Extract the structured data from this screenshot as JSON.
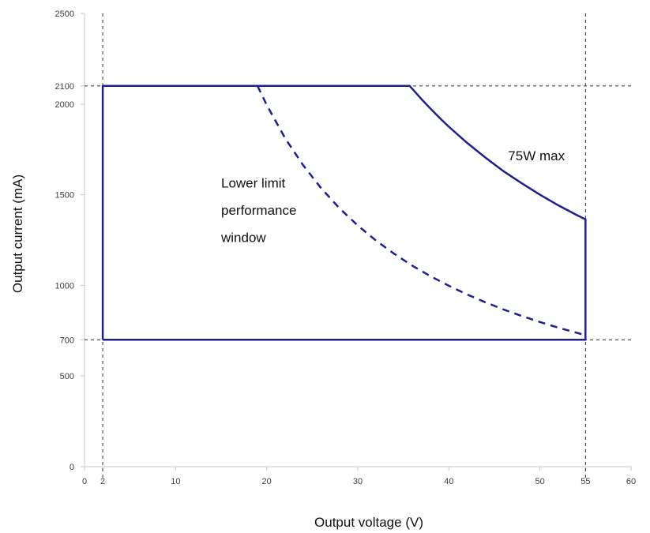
{
  "chart_data": {
    "type": "line",
    "xlabel": "Output voltage (V)",
    "ylabel": "Output current (mA)",
    "xlim": [
      0,
      60
    ],
    "ylim": [
      0,
      2500
    ],
    "x_ticks": [
      0,
      2,
      10,
      20,
      30,
      40,
      50,
      55,
      60
    ],
    "y_ticks": [
      0,
      500,
      700,
      1000,
      1500,
      2000,
      2100,
      2500
    ],
    "grid": false,
    "reference_lines": {
      "vertical_x": [
        2,
        55
      ],
      "horizontal_y": [
        700,
        2100
      ],
      "style": "dashed"
    },
    "series": [
      {
        "style": "solid",
        "x": [
          2,
          2,
          35.7,
          36,
          36.5,
          37,
          38,
          39,
          40,
          42,
          44,
          46,
          48,
          50,
          52,
          54,
          55,
          55,
          2
        ],
        "y": [
          700,
          2100,
          2100,
          2083,
          2055,
          2027,
          1974,
          1923,
          1875,
          1786,
          1705,
          1630,
          1563,
          1500,
          1442,
          1389,
          1364,
          700,
          700
        ]
      },
      {
        "style": "dashed",
        "x": [
          19,
          20,
          22,
          24,
          26,
          28,
          30,
          32,
          34,
          36,
          38,
          40,
          42,
          44,
          46,
          48,
          50,
          52,
          54,
          55
        ],
        "y": [
          2100,
          1995,
          1814,
          1663,
          1535,
          1425,
          1330,
          1247,
          1174,
          1108,
          1050,
          998,
          950,
          907,
          867,
          831,
          798,
          767,
          739,
          725
        ]
      }
    ],
    "annotations": [
      {
        "text": "75W max",
        "x": 46.5,
        "y": 1690
      },
      {
        "text": "Lower limit",
        "x": 15,
        "y": 1540
      },
      {
        "text": "performance",
        "x": 15,
        "y": 1390
      },
      {
        "text": "window",
        "x": 15,
        "y": 1240
      }
    ],
    "colors": {
      "series": "#1f1f8f",
      "reference": "#333333",
      "axis": "#c8c8c8"
    }
  }
}
